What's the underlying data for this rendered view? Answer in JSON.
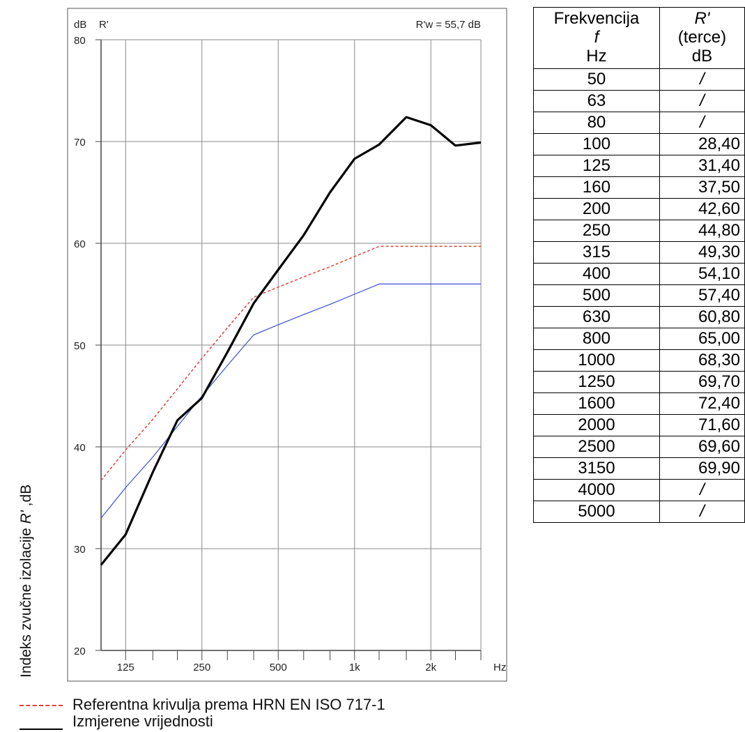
{
  "chart_data": {
    "type": "line",
    "x_scale": "log",
    "x_unit": "Hz",
    "y_unit": "dB",
    "y_name": "R'",
    "annotation": "R'w = 55,7 dB",
    "ylabel_prefix": "Indeks zvučne izolacije ",
    "ylabel_symbol": "R'",
    "ylabel_suffix": " ,dB",
    "ylim": [
      20,
      80
    ],
    "xlim": [
      100,
      3150
    ],
    "yticks": [
      20,
      30,
      40,
      50,
      60,
      70,
      80
    ],
    "xtick_labels": [
      {
        "value": 125,
        "label": "125"
      },
      {
        "value": 250,
        "label": "250"
      },
      {
        "value": 500,
        "label": "500"
      },
      {
        "value": 1000,
        "label": "1k"
      },
      {
        "value": 2000,
        "label": "2k"
      }
    ],
    "x_minor_ticks": [
      160,
      200,
      315,
      400,
      630,
      800,
      1250,
      1600,
      2500,
      3150
    ],
    "x_gridlines": [
      125,
      250,
      500,
      1000,
      2000
    ],
    "grid": true,
    "series": [
      {
        "name": "Izmjerene vrijednosti",
        "color": "#000000",
        "x": [
          100,
          125,
          160,
          200,
          250,
          315,
          400,
          500,
          630,
          800,
          1000,
          1250,
          1600,
          2000,
          2500,
          3150
        ],
        "values": [
          28.4,
          31.4,
          37.5,
          42.6,
          44.8,
          49.3,
          54.1,
          57.4,
          60.8,
          65.0,
          68.3,
          69.7,
          72.4,
          71.6,
          69.6,
          69.9
        ]
      },
      {
        "name": "Referentna krivulja prema HRN EN ISO 717-1",
        "color": "#e0403a",
        "x": [
          100,
          125,
          160,
          200,
          250,
          315,
          400,
          500,
          630,
          800,
          1000,
          1250,
          1600,
          2000,
          2500,
          3150
        ],
        "values": [
          36.7,
          39.7,
          42.7,
          45.7,
          48.7,
          51.7,
          54.7,
          55.7,
          56.7,
          57.7,
          58.7,
          59.7,
          59.7,
          59.7,
          59.7,
          59.7
        ]
      },
      {
        "name": "",
        "color": "#3a4ed8",
        "x": [
          100,
          125,
          160,
          200,
          250,
          315,
          400,
          500,
          630,
          800,
          1000,
          1250,
          1600,
          2000,
          2500,
          3150
        ],
        "values": [
          33.0,
          36.0,
          39.0,
          42.0,
          45.0,
          48.0,
          51.0,
          52.0,
          53.0,
          54.0,
          55.0,
          56.0,
          56.0,
          56.0,
          56.0,
          56.0
        ]
      }
    ]
  },
  "legend": {
    "ref_label": "Referentna krivulja prema HRN EN ISO 717-1",
    "meas_label": "Izmjerene vrijednosti"
  },
  "table": {
    "header_col1_line1": "Frekvencija",
    "header_col1_line2": "f",
    "header_col1_line3": "Hz",
    "header_col2_line1": "R'",
    "header_col2_line2": "(terce)",
    "header_col2_line3": "dB",
    "rows": [
      {
        "f": "50",
        "r": "/"
      },
      {
        "f": "63",
        "r": "/"
      },
      {
        "f": "80",
        "r": "/"
      },
      {
        "f": "100",
        "r": "28,40"
      },
      {
        "f": "125",
        "r": "31,40"
      },
      {
        "f": "160",
        "r": "37,50"
      },
      {
        "f": "200",
        "r": "42,60"
      },
      {
        "f": "250",
        "r": "44,80"
      },
      {
        "f": "315",
        "r": "49,30"
      },
      {
        "f": "400",
        "r": "54,10"
      },
      {
        "f": "500",
        "r": "57,40"
      },
      {
        "f": "630",
        "r": "60,80"
      },
      {
        "f": "800",
        "r": "65,00"
      },
      {
        "f": "1000",
        "r": "68,30"
      },
      {
        "f": "1250",
        "r": "69,70"
      },
      {
        "f": "1600",
        "r": "72,40"
      },
      {
        "f": "2000",
        "r": "71,60"
      },
      {
        "f": "2500",
        "r": "69,60"
      },
      {
        "f": "3150",
        "r": "69,90"
      },
      {
        "f": "4000",
        "r": "/"
      },
      {
        "f": "5000",
        "r": "/"
      }
    ]
  }
}
